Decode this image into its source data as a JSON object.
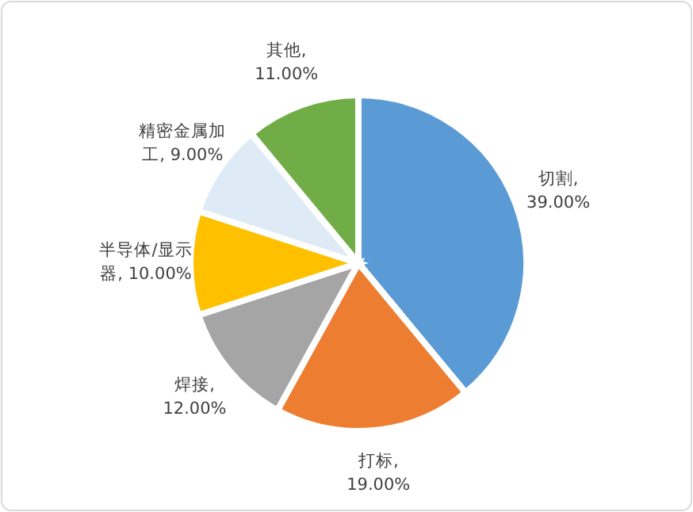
{
  "chart_data": {
    "type": "pie",
    "categories": [
      "切割",
      "打标",
      "焊接",
      "半导体/显示器",
      "精密金属加工",
      "其他"
    ],
    "values": [
      39,
      19,
      12,
      10,
      9,
      11
    ],
    "value_labels": [
      ", 39.00%",
      ", 19.00%",
      ", 12.00%",
      ", 10.00%",
      ", 9.00%",
      ", 11.00%"
    ],
    "colors": [
      "#5b9bd5",
      "#ed7d31",
      "#a5a5a5",
      "#ffc000",
      "#deebf7",
      "#70ad47"
    ]
  }
}
